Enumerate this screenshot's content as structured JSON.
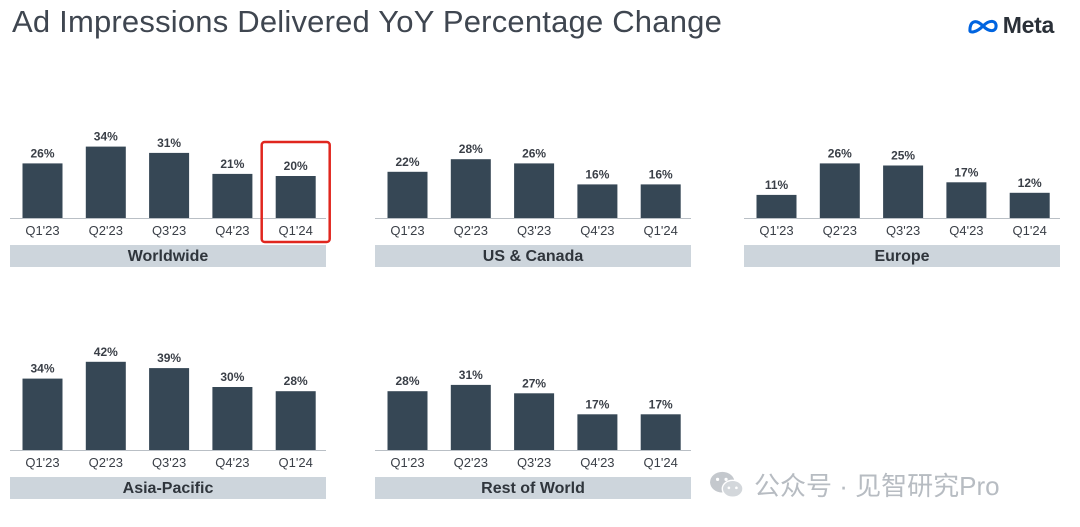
{
  "title": "Ad Impressions Delivered YoY Percentage Change",
  "logo": {
    "text": "Meta",
    "icon": "meta-infinity-logo",
    "color": "#0064e0"
  },
  "watermark": {
    "text": "公众号 · 见智研究Pro",
    "icon": "wechat-icon"
  },
  "colors": {
    "bar": "#364755",
    "panel_label_bg": "#cdd5dc",
    "highlight_border": "#e0261e",
    "axis": "#b9bfc5",
    "text": "#3a3f47"
  },
  "chart_data": [
    {
      "type": "bar",
      "panel_label": "Worldwide",
      "categories": [
        "Q1'23",
        "Q2'23",
        "Q3'23",
        "Q4'23",
        "Q1'24"
      ],
      "values": [
        26,
        34,
        31,
        21,
        20
      ],
      "value_labels": [
        "26%",
        "34%",
        "31%",
        "21%",
        "20%"
      ],
      "highlighted_category": "Q1'24"
    },
    {
      "type": "bar",
      "panel_label": "US & Canada",
      "categories": [
        "Q1'23",
        "Q2'23",
        "Q3'23",
        "Q4'23",
        "Q1'24"
      ],
      "values": [
        22,
        28,
        26,
        16,
        16
      ],
      "value_labels": [
        "22%",
        "28%",
        "26%",
        "16%",
        "16%"
      ]
    },
    {
      "type": "bar",
      "panel_label": "Europe",
      "categories": [
        "Q1'23",
        "Q2'23",
        "Q3'23",
        "Q4'23",
        "Q1'24"
      ],
      "values": [
        11,
        26,
        25,
        17,
        12
      ],
      "value_labels": [
        "11%",
        "26%",
        "25%",
        "17%",
        "12%"
      ]
    },
    {
      "type": "bar",
      "panel_label": "Asia-Pacific",
      "categories": [
        "Q1'23",
        "Q2'23",
        "Q3'23",
        "Q4'23",
        "Q1'24"
      ],
      "values": [
        34,
        42,
        39,
        30,
        28
      ],
      "value_labels": [
        "34%",
        "42%",
        "39%",
        "30%",
        "28%"
      ]
    },
    {
      "type": "bar",
      "panel_label": "Rest of World",
      "categories": [
        "Q1'23",
        "Q2'23",
        "Q3'23",
        "Q4'23",
        "Q1'24"
      ],
      "values": [
        28,
        31,
        27,
        17,
        17
      ],
      "value_labels": [
        "28%",
        "31%",
        "27%",
        "17%",
        "17%"
      ]
    }
  ]
}
